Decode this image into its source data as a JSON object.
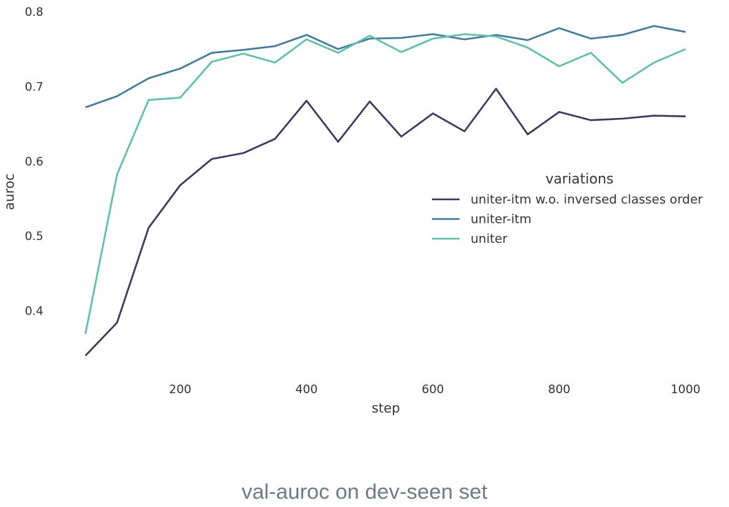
{
  "caption": "val-auroc on dev-seen set",
  "chart_data": {
    "type": "line",
    "xlabel": "step",
    "ylabel": "auroc",
    "xlim": [
      50,
      1000
    ],
    "ylim": [
      0.335,
      0.8
    ],
    "x_ticks": [
      200,
      400,
      600,
      800,
      1000
    ],
    "y_ticks": [
      0.4,
      0.5,
      0.6,
      0.7,
      0.8
    ],
    "x_tick_labels": [
      "200",
      "400",
      "600",
      "800",
      "1000"
    ],
    "y_tick_labels": [
      "0.4",
      "0.5",
      "0.6",
      "0.7",
      "0.8"
    ],
    "grid": false,
    "legend": {
      "title": "variations",
      "position": "center-right"
    },
    "x": [
      50,
      100,
      150,
      200,
      250,
      300,
      350,
      400,
      450,
      500,
      550,
      600,
      650,
      700,
      750,
      800,
      850,
      900,
      950,
      1000
    ],
    "series": [
      {
        "name": "uniter-itm w.o. inversed classes order",
        "color": "#3b3563",
        "values": [
          0.34,
          0.384,
          0.511,
          0.568,
          0.603,
          0.611,
          0.63,
          0.681,
          0.626,
          0.68,
          0.633,
          0.664,
          0.64,
          0.697,
          0.636,
          0.666,
          0.655,
          0.657,
          0.661,
          0.66
        ]
      },
      {
        "name": "uniter-itm",
        "color": "#3d7ca0",
        "values": [
          0.672,
          0.687,
          0.711,
          0.724,
          0.745,
          0.749,
          0.754,
          0.769,
          0.75,
          0.764,
          0.765,
          0.77,
          0.763,
          0.769,
          0.762,
          0.778,
          0.764,
          0.769,
          0.781,
          0.773
        ]
      },
      {
        "name": "uniter",
        "color": "#57c2ae",
        "values": [
          0.369,
          0.582,
          0.682,
          0.685,
          0.733,
          0.744,
          0.732,
          0.763,
          0.745,
          0.768,
          0.746,
          0.764,
          0.77,
          0.767,
          0.752,
          0.727,
          0.745,
          0.705,
          0.732,
          0.75
        ]
      }
    ]
  }
}
